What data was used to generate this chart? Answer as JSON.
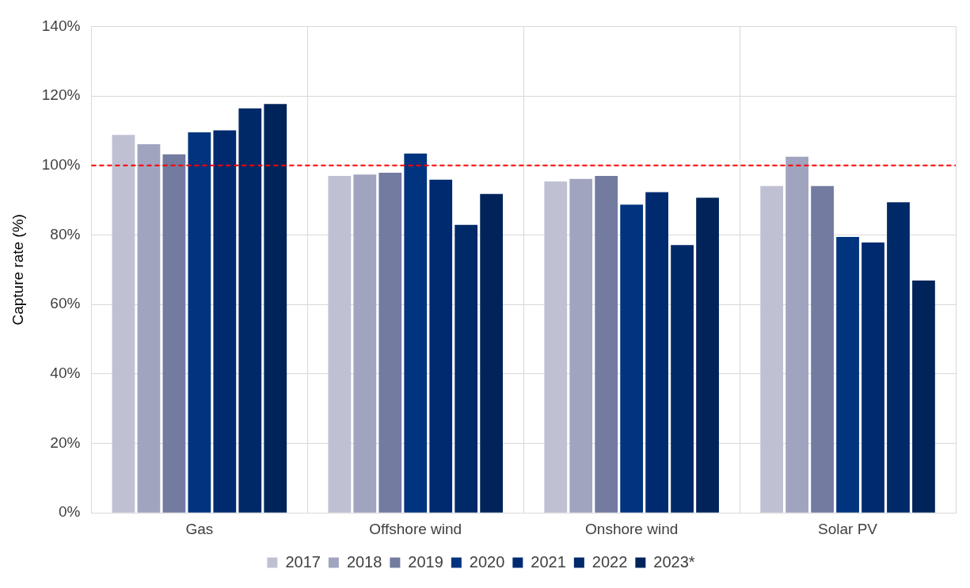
{
  "chart_data": {
    "type": "bar",
    "ylabel": "Capture rate (%)",
    "categories": [
      "Gas",
      "Offshore wind",
      "Onshore wind",
      "Solar PV"
    ],
    "series": [
      {
        "name": "2017",
        "color": "#bfc1d3",
        "values": [
          108.8,
          97.0,
          95.4,
          94.1
        ]
      },
      {
        "name": "2018",
        "color": "#a0a4bf",
        "values": [
          106.1,
          97.4,
          96.1,
          102.5
        ]
      },
      {
        "name": "2019",
        "color": "#737ba0",
        "values": [
          103.2,
          97.9,
          97.0,
          94.1
        ]
      },
      {
        "name": "2020",
        "color": "#00347f",
        "values": [
          109.5,
          103.4,
          88.7,
          79.4
        ]
      },
      {
        "name": "2021",
        "color": "#002a70",
        "values": [
          110.1,
          95.9,
          92.3,
          77.8
        ]
      },
      {
        "name": "2022",
        "color": "#002968",
        "values": [
          116.4,
          82.9,
          77.1,
          89.4
        ]
      },
      {
        "name": "2023*",
        "color": "#00245a",
        "values": [
          117.7,
          91.8,
          90.7,
          66.9
        ]
      }
    ],
    "ylim": [
      0,
      140
    ],
    "yticks": [
      {
        "value": 0,
        "label": "0%"
      },
      {
        "value": 20,
        "label": "20%"
      },
      {
        "value": 40,
        "label": "40%"
      },
      {
        "value": 60,
        "label": "60%"
      },
      {
        "value": 80,
        "label": "80%"
      },
      {
        "value": 100,
        "label": "100%"
      },
      {
        "value": 120,
        "label": "120%"
      },
      {
        "value": 140,
        "label": "140%"
      }
    ],
    "ref_lines": [
      {
        "axis": "y",
        "value": 100,
        "color": "#ff0000",
        "line_style": "dashed"
      }
    ],
    "grid": true,
    "legend": "bottom"
  }
}
